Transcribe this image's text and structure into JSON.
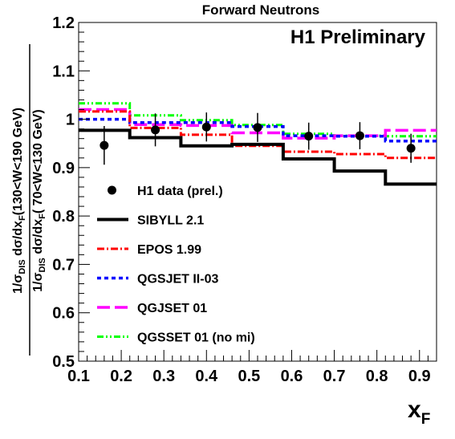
{
  "chart_data": {
    "type": "line",
    "title": "Forward Neutrons",
    "annotation": "H1 Preliminary",
    "xlabel": "x",
    "xlabel_sub": "F",
    "ylabel_num": {
      "a": "1/σ",
      "a_sub": "DIS",
      "b": " dσ/dx",
      "b_sub": "F",
      "c": "(130<W<190 GeV)"
    },
    "ylabel_den": {
      "a": "1/σ",
      "a_sub": "DIS",
      "b": " dσ/dx",
      "b_sub": "F",
      "c": "( 70<W<130 GeV)"
    },
    "xlim": [
      0.1,
      0.94
    ],
    "ylim": [
      0.5,
      1.2
    ],
    "xticks": [
      "0.1",
      "0.2",
      "0.3",
      "0.4",
      "0.5",
      "0.6",
      "0.7",
      "0.8",
      "0.9"
    ],
    "yticks": [
      "0.5",
      "0.6",
      "0.7",
      "0.8",
      "0.9",
      "1",
      "1.1",
      "1.2"
    ],
    "bin_edges": [
      0.1,
      0.22,
      0.34,
      0.46,
      0.58,
      0.7,
      0.82,
      0.94
    ],
    "legend_position": "left",
    "data_points": {
      "name": "H1 data (prel.)",
      "x": [
        0.16,
        0.28,
        0.4,
        0.52,
        0.64,
        0.76,
        0.88
      ],
      "y": [
        0.946,
        0.978,
        0.984,
        0.983,
        0.965,
        0.966,
        0.94
      ],
      "yerr": [
        0.04,
        0.034,
        0.03,
        0.03,
        0.028,
        0.028,
        0.03
      ]
    },
    "series": [
      {
        "name": "SIBYLL 2.1",
        "color": "#000000",
        "style": "solid",
        "values": [
          0.977,
          0.962,
          0.945,
          0.948,
          0.918,
          0.893,
          0.866
        ]
      },
      {
        "name": "EPOS 1.99",
        "color": "#ff0000",
        "style": "dashdot",
        "values": [
          1.016,
          0.982,
          0.968,
          0.945,
          0.933,
          0.928,
          0.92
        ]
      },
      {
        "name": "QGSJET II-03",
        "color": "#0000ff",
        "style": "dotted",
        "values": [
          1.0,
          0.993,
          0.993,
          0.985,
          0.966,
          0.965,
          0.955
        ]
      },
      {
        "name": "QGJSET 01",
        "color": "#ff00ff",
        "style": "longdash",
        "values": [
          1.02,
          0.989,
          0.987,
          0.972,
          0.961,
          0.966,
          0.977
        ]
      },
      {
        "name": "QGSSET 01 (no mi)",
        "color": "#00ff00",
        "style": "dashdotted",
        "values": [
          1.033,
          1.008,
          0.998,
          0.988,
          0.97,
          0.966,
          0.965
        ]
      }
    ]
  }
}
